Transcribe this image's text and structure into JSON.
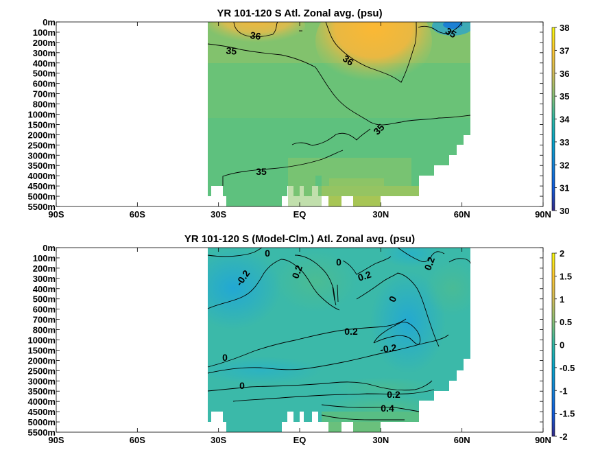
{
  "chart_data": [
    {
      "type": "heatmap",
      "title": "YR 101-120 S Atl. Zonal avg. (psu)",
      "x_ticks": [
        "90S",
        "60S",
        "30S",
        "EQ",
        "30N",
        "60N",
        "90N"
      ],
      "x_range": [
        -90,
        90
      ],
      "y_ticks": [
        "0m",
        "100m",
        "200m",
        "300m",
        "400m",
        "500m",
        "600m",
        "700m",
        "800m",
        "1000m",
        "1500m",
        "2000m",
        "2500m",
        "3000m",
        "3500m",
        "4000m",
        "4500m",
        "5000m",
        "5500m"
      ],
      "colorbar": {
        "min": 30,
        "max": 38,
        "ticks": [
          "30",
          "31",
          "32",
          "33",
          "34",
          "35",
          "36",
          "37",
          "38"
        ]
      },
      "contour_labels": [
        "36",
        "35",
        "36",
        "35",
        "35",
        "35"
      ],
      "data_extent_lat": [
        -34,
        63
      ]
    },
    {
      "type": "heatmap",
      "title": "YR 101-120 S (Model-Clm.) Atl. Zonal avg. (psu)",
      "x_ticks": [
        "90S",
        "60S",
        "30S",
        "EQ",
        "30N",
        "60N",
        "90N"
      ],
      "x_range": [
        -90,
        90
      ],
      "y_ticks": [
        "0m",
        "100m",
        "200m",
        "300m",
        "400m",
        "500m",
        "600m",
        "700m",
        "800m",
        "1000m",
        "1500m",
        "2000m",
        "2500m",
        "3000m",
        "3500m",
        "4000m",
        "4500m",
        "5000m",
        "5500m"
      ],
      "colorbar": {
        "min": -2,
        "max": 2,
        "ticks": [
          "-2",
          "-1.5",
          "-1",
          "-0.5",
          "0",
          "0.5",
          "1",
          "1.5",
          "2"
        ]
      },
      "contour_labels": [
        "0",
        "-0.2",
        "0.2",
        "0",
        "0.2",
        "0.2",
        "0",
        "0.2",
        "-0.2",
        "0",
        "0",
        "0.2",
        "0.4"
      ],
      "data_extent_lat": [
        -34,
        63
      ]
    }
  ]
}
